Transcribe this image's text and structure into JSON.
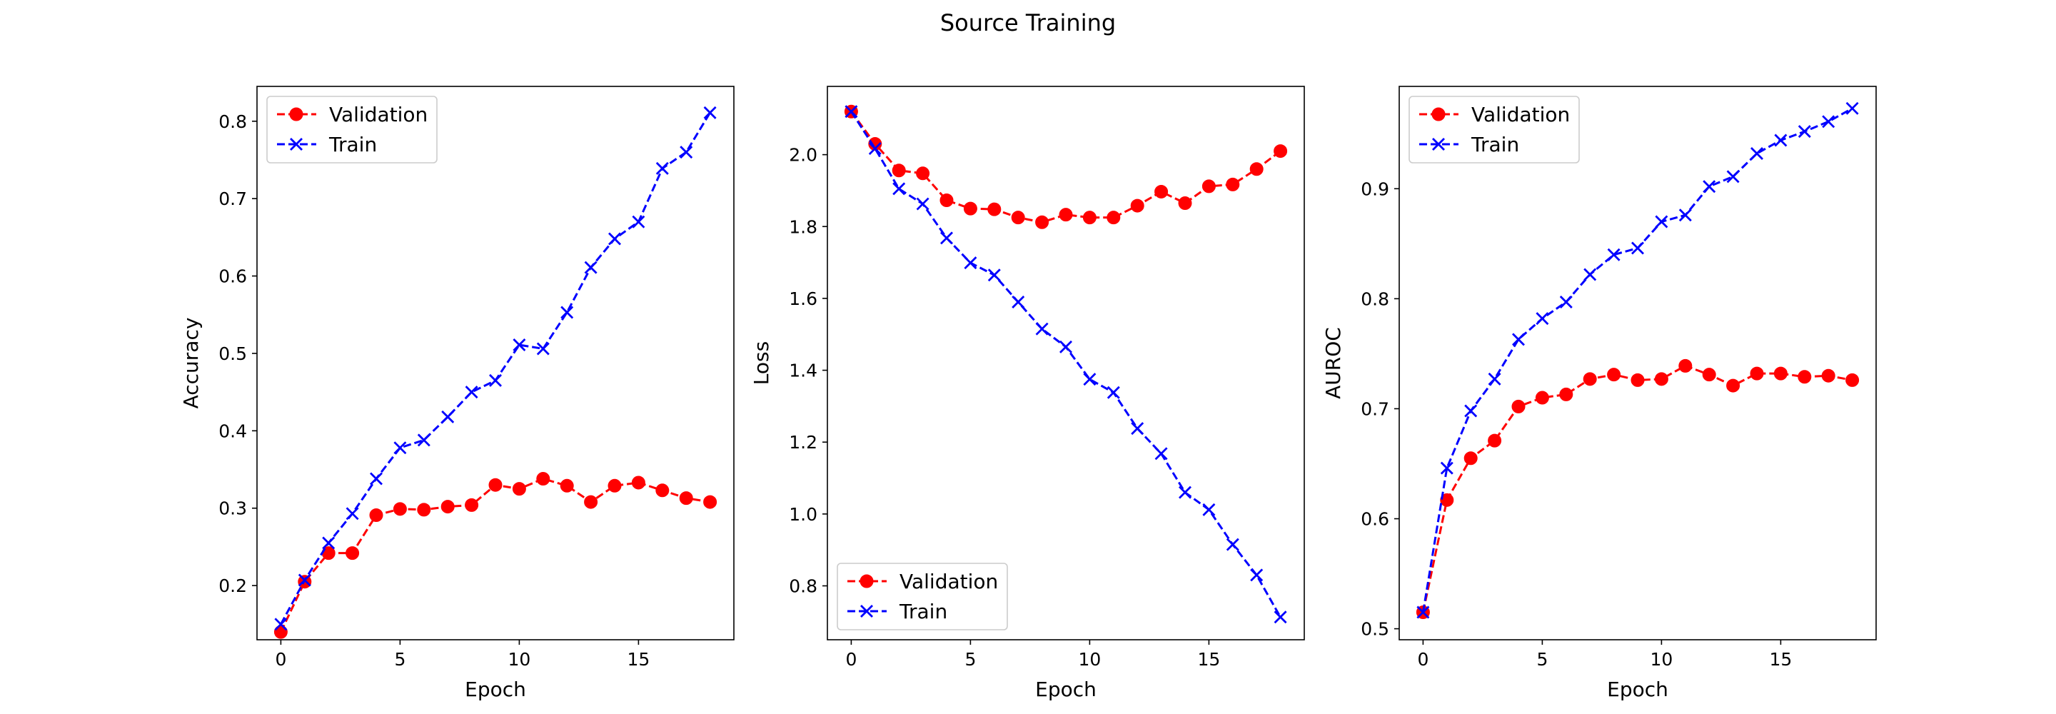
{
  "figure": {
    "title": "Source Training"
  },
  "chart_data": [
    {
      "type": "line",
      "xlabel": "Epoch",
      "ylabel": "Accuracy",
      "xlim": [
        -1,
        19
      ],
      "ylim": [
        0.13,
        0.845
      ],
      "xticks": [
        0,
        5,
        10,
        15
      ],
      "yticks": [
        0.2,
        0.3,
        0.4,
        0.5,
        0.6,
        0.7,
        0.8
      ],
      "ytick_labels": [
        "0.2",
        "0.3",
        "0.4",
        "0.5",
        "0.6",
        "0.7",
        "0.8"
      ],
      "legend_position": "upper-left",
      "x": [
        0,
        1,
        2,
        3,
        4,
        5,
        6,
        7,
        8,
        9,
        10,
        11,
        12,
        13,
        14,
        15,
        16,
        17,
        18
      ],
      "series": [
        {
          "name": "Validation",
          "color": "#ff0000",
          "marker": "circle",
          "values": [
            0.14,
            0.205,
            0.242,
            0.242,
            0.291,
            0.299,
            0.298,
            0.302,
            0.304,
            0.33,
            0.325,
            0.338,
            0.329,
            0.308,
            0.329,
            0.333,
            0.323,
            0.313,
            0.308
          ]
        },
        {
          "name": "Train",
          "color": "#0000ff",
          "marker": "x",
          "values": [
            0.15,
            0.207,
            0.255,
            0.293,
            0.338,
            0.378,
            0.388,
            0.418,
            0.45,
            0.465,
            0.511,
            0.506,
            0.553,
            0.611,
            0.648,
            0.67,
            0.739,
            0.76,
            0.811
          ]
        }
      ]
    },
    {
      "type": "line",
      "xlabel": "Epoch",
      "ylabel": "Loss",
      "xlim": [
        -1,
        19
      ],
      "ylim": [
        0.65,
        2.19
      ],
      "xticks": [
        0,
        5,
        10,
        15
      ],
      "yticks": [
        0.8,
        1.0,
        1.2,
        1.4,
        1.6,
        1.8,
        2.0
      ],
      "ytick_labels": [
        "0.8",
        "1.0",
        "1.2",
        "1.4",
        "1.6",
        "1.8",
        "2.0"
      ],
      "legend_position": "lower-left",
      "x": [
        0,
        1,
        2,
        3,
        4,
        5,
        6,
        7,
        8,
        9,
        10,
        11,
        12,
        13,
        14,
        15,
        16,
        17,
        18
      ],
      "series": [
        {
          "name": "Validation",
          "color": "#ff0000",
          "marker": "circle",
          "values": [
            2.12,
            2.03,
            1.956,
            1.948,
            1.873,
            1.85,
            1.848,
            1.825,
            1.812,
            1.833,
            1.825,
            1.825,
            1.858,
            1.897,
            1.865,
            1.912,
            1.917,
            1.96,
            2.01
          ]
        },
        {
          "name": "Train",
          "color": "#0000ff",
          "marker": "x",
          "values": [
            2.12,
            2.017,
            1.905,
            1.863,
            1.768,
            1.699,
            1.665,
            1.59,
            1.515,
            1.465,
            1.375,
            1.338,
            1.238,
            1.168,
            1.06,
            1.012,
            0.915,
            0.83,
            0.713
          ]
        }
      ]
    },
    {
      "type": "line",
      "xlabel": "Epoch",
      "ylabel": "AUROC",
      "xlim": [
        -1,
        19
      ],
      "ylim": [
        0.49,
        0.993
      ],
      "xticks": [
        0,
        5,
        10,
        15
      ],
      "yticks": [
        0.5,
        0.6,
        0.7,
        0.8,
        0.9
      ],
      "ytick_labels": [
        "0.5",
        "0.6",
        "0.7",
        "0.8",
        "0.9"
      ],
      "legend_position": "upper-left",
      "x": [
        0,
        1,
        2,
        3,
        4,
        5,
        6,
        7,
        8,
        9,
        10,
        11,
        12,
        13,
        14,
        15,
        16,
        17,
        18
      ],
      "series": [
        {
          "name": "Validation",
          "color": "#ff0000",
          "marker": "circle",
          "values": [
            0.515,
            0.617,
            0.655,
            0.671,
            0.702,
            0.71,
            0.713,
            0.727,
            0.731,
            0.726,
            0.727,
            0.739,
            0.731,
            0.721,
            0.732,
            0.732,
            0.729,
            0.73,
            0.726
          ]
        },
        {
          "name": "Train",
          "color": "#0000ff",
          "marker": "x",
          "values": [
            0.515,
            0.646,
            0.698,
            0.727,
            0.763,
            0.782,
            0.797,
            0.822,
            0.84,
            0.846,
            0.87,
            0.876,
            0.902,
            0.911,
            0.932,
            0.944,
            0.952,
            0.961,
            0.973
          ]
        }
      ]
    }
  ]
}
